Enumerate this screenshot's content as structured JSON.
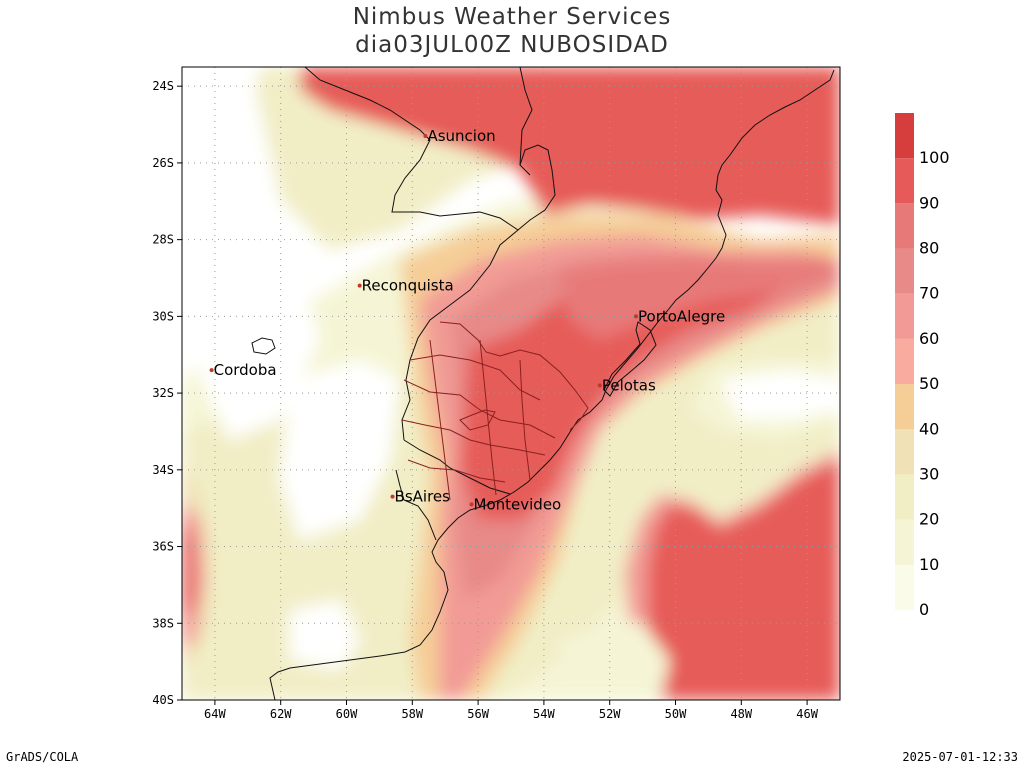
{
  "title": {
    "line1": "Nimbus Weather Services",
    "line2": "dia03JUL00Z NUBOSIDAD"
  },
  "footer": {
    "left": "GrADS/COLA",
    "right": "2025-07-01-12:33"
  },
  "map": {
    "lon_range": [
      -65,
      -45
    ],
    "lat_range": [
      -40,
      -23.5
    ],
    "x_ticks": [
      {
        "lon": -64,
        "label": "64W"
      },
      {
        "lon": -62,
        "label": "62W"
      },
      {
        "lon": -60,
        "label": "60W"
      },
      {
        "lon": -58,
        "label": "58W"
      },
      {
        "lon": -56,
        "label": "56W"
      },
      {
        "lon": -54,
        "label": "54W"
      },
      {
        "lon": -52,
        "label": "52W"
      },
      {
        "lon": -50,
        "label": "50W"
      },
      {
        "lon": -48,
        "label": "48W"
      },
      {
        "lon": -46,
        "label": "46W"
      }
    ],
    "y_ticks": [
      {
        "lat": -24,
        "label": "24S"
      },
      {
        "lat": -26,
        "label": "26S"
      },
      {
        "lat": -28,
        "label": "28S"
      },
      {
        "lat": -30,
        "label": "30S"
      },
      {
        "lat": -32,
        "label": "32S"
      },
      {
        "lat": -34,
        "label": "34S"
      },
      {
        "lat": -36,
        "label": "36S"
      },
      {
        "lat": -38,
        "label": "38S"
      },
      {
        "lat": -40,
        "label": "40S"
      }
    ],
    "cities": [
      {
        "name": "Asuncion",
        "lon": -57.6,
        "lat": -25.3
      },
      {
        "name": "Reconquista",
        "lon": -59.6,
        "lat": -29.2
      },
      {
        "name": "Cordoba",
        "lon": -64.1,
        "lat": -31.4
      },
      {
        "name": "PortoAlegre",
        "lon": -51.2,
        "lat": -30.0
      },
      {
        "name": "Pelotas",
        "lon": -52.3,
        "lat": -31.8
      },
      {
        "name": "BsAires",
        "lon": -58.6,
        "lat": -34.7
      },
      {
        "name": "Montevideo",
        "lon": -56.2,
        "lat": -34.9
      }
    ]
  },
  "legend": {
    "labels": [
      "0",
      "10",
      "20",
      "30",
      "40",
      "50",
      "60",
      "70",
      "80",
      "90",
      "100"
    ],
    "colors": [
      "#fafbe8",
      "#f5f5d5",
      "#f1eec6",
      "#f0e2b6",
      "#f5cd97",
      "#f8ab9e",
      "#f29b96",
      "#e78a88",
      "#e77a79",
      "#e65b59",
      "#d63d3d"
    ]
  }
}
